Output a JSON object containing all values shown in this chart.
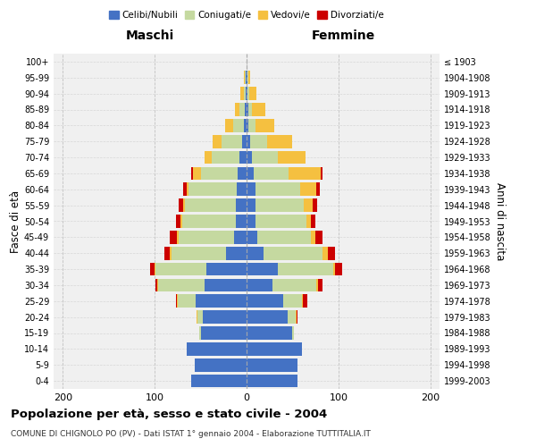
{
  "age_groups": [
    "0-4",
    "5-9",
    "10-14",
    "15-19",
    "20-24",
    "25-29",
    "30-34",
    "35-39",
    "40-44",
    "45-49",
    "50-54",
    "55-59",
    "60-64",
    "65-69",
    "70-74",
    "75-79",
    "80-84",
    "85-89",
    "90-94",
    "95-99",
    "100+"
  ],
  "birth_years": [
    "1999-2003",
    "1994-1998",
    "1989-1993",
    "1984-1988",
    "1979-1983",
    "1974-1978",
    "1969-1973",
    "1964-1968",
    "1959-1963",
    "1954-1958",
    "1949-1953",
    "1944-1948",
    "1939-1943",
    "1934-1938",
    "1929-1933",
    "1924-1928",
    "1919-1923",
    "1914-1918",
    "1909-1913",
    "1904-1908",
    "≤ 1903"
  ],
  "maschi": {
    "celibi": [
      60,
      56,
      65,
      50,
      48,
      55,
      46,
      44,
      22,
      14,
      12,
      12,
      11,
      10,
      8,
      5,
      3,
      2,
      1,
      1,
      0
    ],
    "coniugati": [
      0,
      0,
      0,
      2,
      5,
      20,
      50,
      55,
      60,
      60,
      58,
      55,
      52,
      40,
      30,
      22,
      12,
      6,
      2,
      1,
      0
    ],
    "vedovi": [
      0,
      0,
      0,
      0,
      1,
      1,
      1,
      1,
      2,
      2,
      2,
      2,
      2,
      8,
      8,
      10,
      8,
      5,
      4,
      1,
      0
    ],
    "divorziati": [
      0,
      0,
      0,
      0,
      0,
      1,
      2,
      5,
      5,
      8,
      5,
      5,
      4,
      2,
      0,
      0,
      0,
      0,
      0,
      0,
      0
    ]
  },
  "femmine": {
    "nubili": [
      55,
      55,
      60,
      50,
      45,
      40,
      28,
      34,
      18,
      12,
      10,
      10,
      10,
      8,
      6,
      4,
      2,
      2,
      1,
      1,
      0
    ],
    "coniugate": [
      0,
      0,
      0,
      2,
      8,
      20,
      48,
      60,
      65,
      58,
      55,
      52,
      48,
      38,
      28,
      18,
      8,
      4,
      2,
      1,
      0
    ],
    "vedove": [
      0,
      0,
      0,
      0,
      1,
      1,
      2,
      2,
      5,
      5,
      5,
      10,
      18,
      35,
      30,
      28,
      20,
      14,
      8,
      2,
      0
    ],
    "divorziate": [
      0,
      0,
      0,
      0,
      1,
      5,
      5,
      8,
      8,
      8,
      5,
      5,
      4,
      2,
      0,
      0,
      0,
      0,
      0,
      0,
      0
    ]
  },
  "colors": {
    "celibi": "#4472C4",
    "coniugati": "#C5D9A0",
    "vedovi": "#F5C040",
    "divorziati": "#CC0000"
  },
  "title": "Popolazione per età, sesso e stato civile - 2004",
  "subtitle": "COMUNE DI CHIGNOLO PO (PV) - Dati ISTAT 1° gennaio 2004 - Elaborazione TUTTITALIA.IT",
  "xlabel_maschi": "Maschi",
  "xlabel_femmine": "Femmine",
  "ylabel_left": "Fasce di età",
  "ylabel_right": "Anni di nascita",
  "xlim": 210,
  "background_color": "#ffffff",
  "grid_color": "#cccccc"
}
